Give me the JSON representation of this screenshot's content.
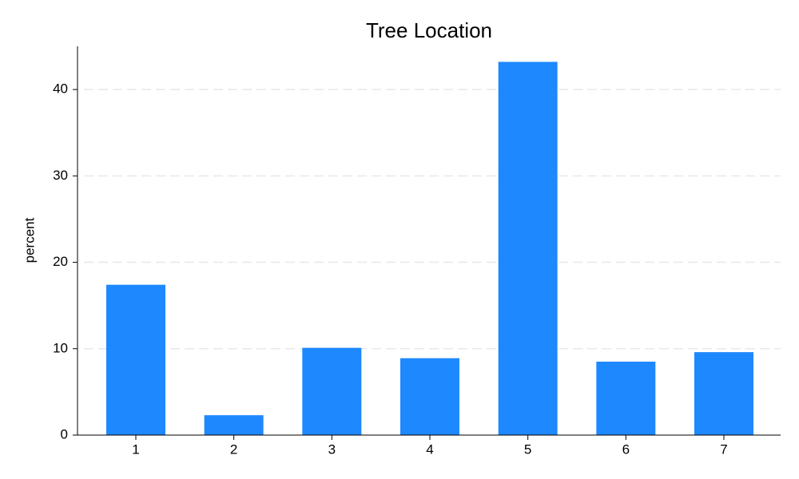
{
  "chart_data": {
    "type": "bar",
    "title": "Tree Location",
    "y_label": "percent",
    "categories": [
      "1",
      "2",
      "3",
      "4",
      "5",
      "6",
      "7"
    ],
    "values": [
      17.4,
      2.3,
      10.1,
      8.9,
      43.2,
      8.5,
      9.6
    ],
    "color": "#1e88ff",
    "ylim": [
      0,
      45
    ],
    "yticks": [
      0,
      10,
      20,
      30,
      40
    ],
    "grid": true
  }
}
